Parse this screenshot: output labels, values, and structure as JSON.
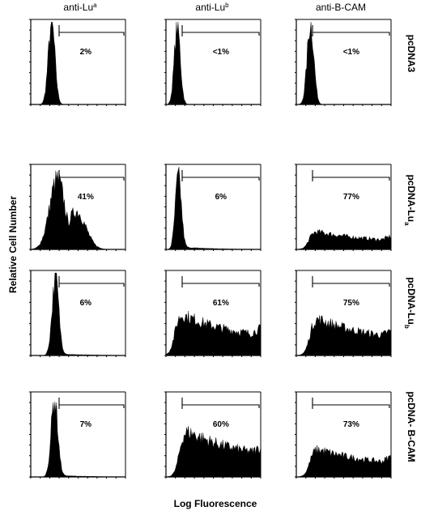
{
  "chart_data": {
    "type": "histogram-grid",
    "columns": [
      {
        "base": "anti-Lu",
        "sup": "a"
      },
      {
        "base": "anti-Lu",
        "sup": "b"
      },
      {
        "base": "anti-B-CAM",
        "sup": ""
      }
    ],
    "rows": [
      {
        "base": "pcDNA3",
        "sup": ""
      },
      {
        "base": "pcDNA-Lu",
        "sup": "a"
      },
      {
        "base": "pcDNA-Lu",
        "sup": "b"
      },
      {
        "base": "pcDNA- B-CAM",
        "sup": ""
      }
    ],
    "xlabel": "Log Fluorescence",
    "ylabel": "Relative Cell Number",
    "percent_positive": [
      [
        "2%",
        "<1%",
        "<1%"
      ],
      [
        "41%",
        "6%",
        "77%"
      ],
      [
        "6%",
        "61%",
        "75%"
      ],
      [
        "7%",
        "60%",
        "73%"
      ]
    ],
    "panels": [
      [
        {
          "shape": "peak",
          "mode": 0.22,
          "width": 0.05,
          "height": 0.95,
          "tail": 0.0
        },
        {
          "shape": "peak",
          "mode": 0.12,
          "width": 0.045,
          "height": 0.92,
          "tail": 0.0
        },
        {
          "shape": "peak",
          "mode": 0.15,
          "width": 0.05,
          "height": 0.95,
          "tail": 0.0
        }
      ],
      [
        {
          "shape": "broad",
          "mode": 0.28,
          "width": 0.11,
          "height": 0.82,
          "tail": 0.28
        },
        {
          "shape": "peak",
          "mode": 0.13,
          "width": 0.045,
          "height": 0.85,
          "tail": 0.03
        },
        {
          "shape": "plateau",
          "mode": 0.18,
          "width": 0.08,
          "height": 0.22,
          "tail": 0.16
        }
      ],
      [
        {
          "shape": "peak",
          "mode": 0.26,
          "width": 0.05,
          "height": 0.9,
          "tail": 0.02
        },
        {
          "shape": "plateau",
          "mode": 0.15,
          "width": 0.1,
          "height": 0.5,
          "tail": 0.26
        },
        {
          "shape": "plateau",
          "mode": 0.2,
          "width": 0.1,
          "height": 0.45,
          "tail": 0.22
        }
      ],
      [
        {
          "shape": "peak",
          "mode": 0.25,
          "width": 0.05,
          "height": 0.9,
          "tail": 0.02
        },
        {
          "shape": "plateau",
          "mode": 0.2,
          "width": 0.1,
          "height": 0.56,
          "tail": 0.2
        },
        {
          "shape": "plateau",
          "mode": 0.2,
          "width": 0.1,
          "height": 0.34,
          "tail": 0.24
        }
      ]
    ]
  }
}
